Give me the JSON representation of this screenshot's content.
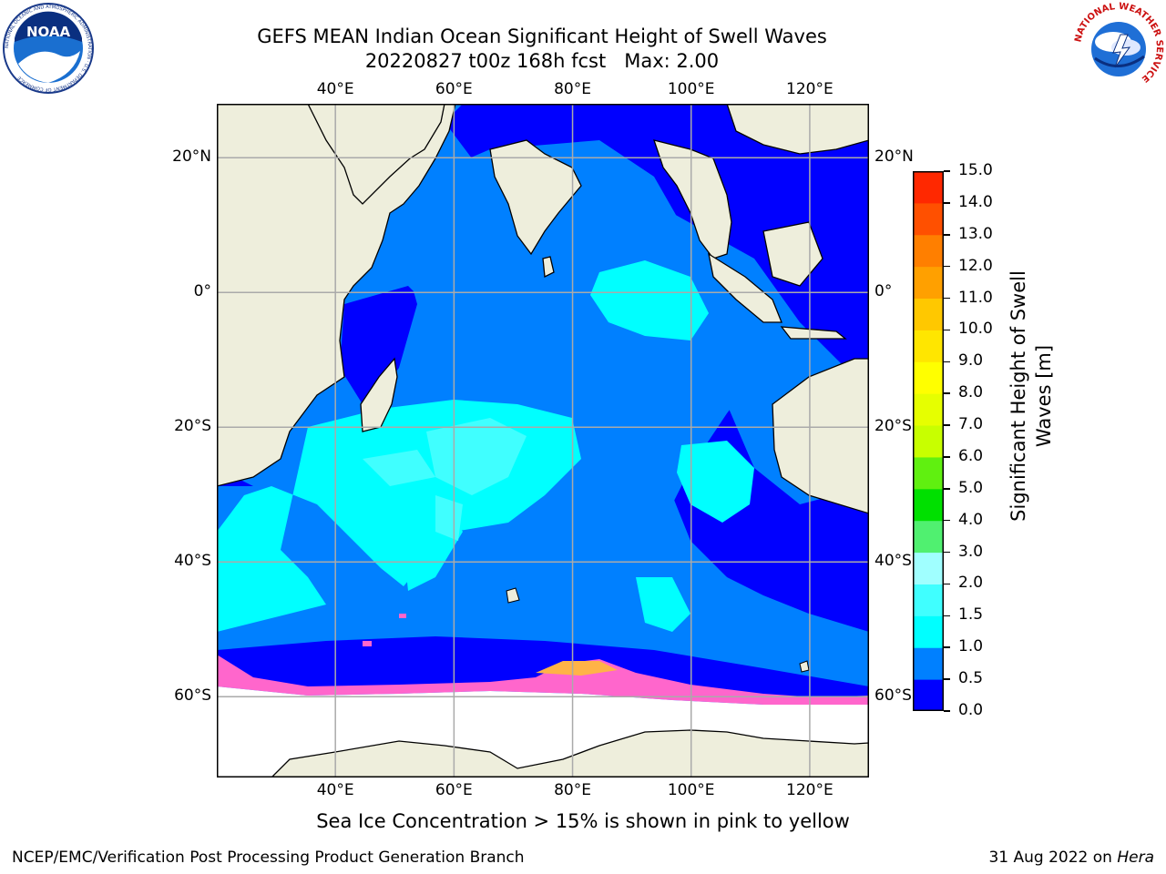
{
  "header": {
    "title_line1": "GEFS MEAN Indian Ocean Significant Height of Swell Waves",
    "title_line2": "20220827 t00z 168h fcst   Max: 2.00"
  },
  "logos": {
    "noaa_text": "NOAA",
    "noaa_ring_text": "NATIONAL OCEANIC AND ATMOSPHERIC ADMINISTRATION · U.S. DEPARTMENT OF COMMERCE",
    "nws_ring_text": "NATIONAL WEATHER SERVICE"
  },
  "map": {
    "projection": "PlateCarree",
    "lon_range": [
      20,
      130
    ],
    "lat_range": [
      -72,
      28
    ],
    "lon_ticks": [
      "40°E",
      "60°E",
      "80°E",
      "100°E",
      "120°E"
    ],
    "lat_ticks": [
      "20°N",
      "0°",
      "20°S",
      "40°S",
      "60°S"
    ],
    "lon_tick_values": [
      40,
      60,
      80,
      100,
      120
    ],
    "lat_tick_values": [
      20,
      0,
      -20,
      -40,
      -60
    ],
    "gridlines": true,
    "colors": {
      "land": "#eeeedc",
      "ice_free_below": "#ffffff",
      "sea_ice": "#ff66cc"
    }
  },
  "colorbar": {
    "label_line1": "Significant Height of Swell",
    "label_line2": "Waves [m]",
    "tick_labels": [
      "0.0",
      "0.5",
      "1.0",
      "1.5",
      "2.0",
      "3.0",
      "4.0",
      "5.0",
      "6.0",
      "7.0",
      "8.0",
      "9.0",
      "10.0",
      "11.0",
      "12.0",
      "13.0",
      "14.0",
      "15.0"
    ],
    "colors": [
      "#0000ff",
      "#0080ff",
      "#00ffff",
      "#40ffff",
      "#a0ffff",
      "#50f070",
      "#00e000",
      "#60f010",
      "#c8ff00",
      "#e6ff00",
      "#ffff00",
      "#ffe600",
      "#ffc800",
      "#ffa000",
      "#ff7f00",
      "#ff5000",
      "#ff2800",
      "#ff0000"
    ]
  },
  "annotation": {
    "ice_note": "Sea Ice Concentration > 15% is shown in pink to yellow"
  },
  "footer": {
    "left": "NCEP/EMC/Verification Post Processing Product Generation Branch",
    "right_date": "31 Aug 2022 on",
    "right_machine": "Hera"
  }
}
